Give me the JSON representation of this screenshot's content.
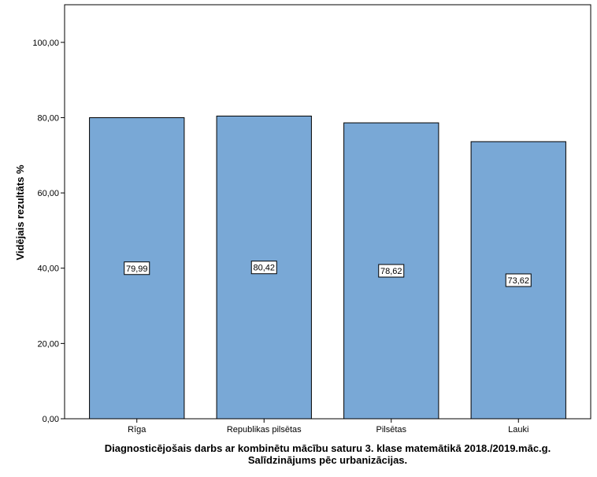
{
  "chart_data": {
    "type": "bar",
    "categories": [
      "Rīga",
      "Republikas pilsētas",
      "Pilsētas",
      "Lauki"
    ],
    "values": [
      79.99,
      80.42,
      78.62,
      73.62
    ],
    "data_labels": [
      "79,99",
      "80,42",
      "78,62",
      "73,62"
    ],
    "ylim": [
      0,
      110
    ],
    "yticks": [
      0,
      20,
      40,
      60,
      80,
      100
    ],
    "ytick_labels": [
      "0,00",
      "20,00",
      "40,00",
      "60,00",
      "80,00",
      "100,00"
    ],
    "ylabel": "Vidējais rezultāts %",
    "xlabel_line1": "Diagnosticējošais darbs ar kombinētu mācību saturu 3. klase matemātikā 2018./2019.māc.g.",
    "xlabel_line2": "Salīdzinājums pēc urbanizācijas.",
    "grid": false,
    "legend": "none",
    "bar_color": "#79a8d6",
    "bar_edge_color": "#000000"
  }
}
